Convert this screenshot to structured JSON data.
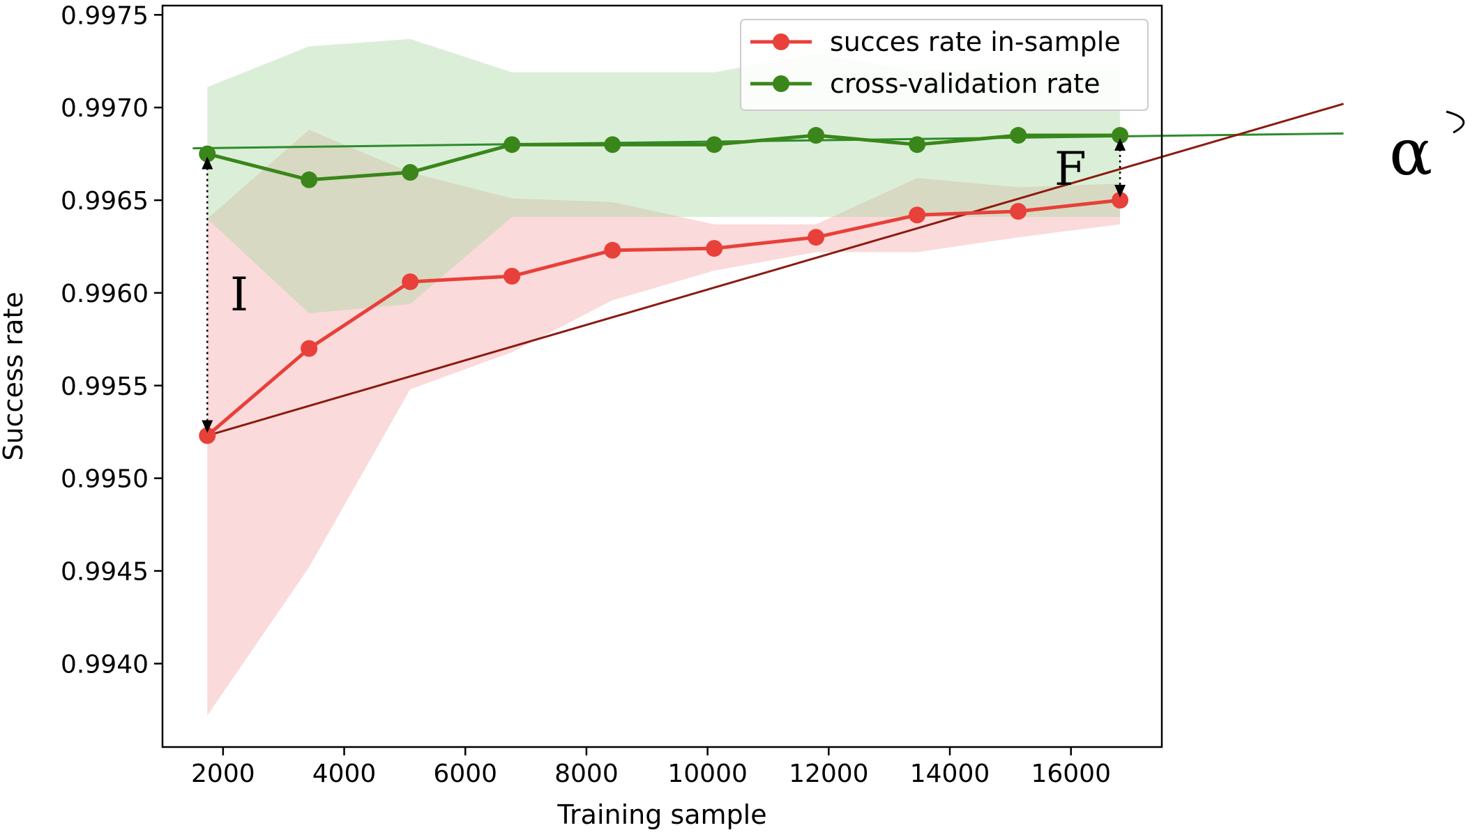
{
  "chart_data": {
    "type": "line",
    "title": "",
    "xlabel": "Training sample",
    "ylabel": "Success rate",
    "xlim": [
      1000,
      17500
    ],
    "ylim": [
      0.99355,
      0.99755
    ],
    "xticks": [
      2000,
      4000,
      6000,
      8000,
      10000,
      12000,
      14000,
      16000
    ],
    "yticks": [
      0.994,
      0.9945,
      0.995,
      0.9955,
      0.996,
      0.9965,
      0.997,
      0.9975
    ],
    "ytick_labels": [
      "0.9940",
      "0.9945",
      "0.9950",
      "0.9955",
      "0.9960",
      "0.9965",
      "0.9970",
      "0.9975"
    ],
    "grid": false,
    "legend_position": "top-right",
    "x": [
      1740,
      3420,
      5090,
      6770,
      8430,
      10110,
      11790,
      13460,
      15130,
      16810
    ],
    "series": [
      {
        "name": "succes rate in-sample",
        "color": "#e8403a",
        "values": [
          0.99523,
          0.9957,
          0.99606,
          0.99609,
          0.99623,
          0.99624,
          0.9963,
          0.99642,
          0.99644,
          0.9965
        ],
        "band_upper": [
          0.9964,
          0.99688,
          0.99665,
          0.99651,
          0.99649,
          0.99637,
          0.99637,
          0.99662,
          0.99657,
          0.99659
        ],
        "band_lower": [
          0.99372,
          0.99452,
          0.99548,
          0.99568,
          0.99596,
          0.99612,
          0.99622,
          0.99622,
          0.9963,
          0.99637
        ]
      },
      {
        "name": "cross-validation rate",
        "color": "#3a861a",
        "values": [
          0.99675,
          0.99661,
          0.99665,
          0.9968,
          0.9968,
          0.9968,
          0.99685,
          0.9968,
          0.99685,
          0.99685
        ],
        "band_upper": [
          0.99711,
          0.99733,
          0.99737,
          0.99719,
          0.99719,
          0.99719,
          0.99729,
          0.9972,
          0.99721,
          0.99721
        ],
        "band_lower": [
          0.9964,
          0.99589,
          0.99594,
          0.99641,
          0.99641,
          0.99641,
          0.99641,
          0.99641,
          0.99641,
          0.99641
        ]
      }
    ],
    "annotations": [
      {
        "label": "I",
        "x": 1740,
        "y_from": 0.99675,
        "y_to": 0.99523
      },
      {
        "label": "F",
        "x": 16810,
        "y_from": 0.99685,
        "y_to": 0.9965
      },
      {
        "label": "α"
      }
    ],
    "reference_lines": [
      {
        "color": "#2e8b2e",
        "from": [
          1500,
          0.99678
        ],
        "to": [
          20500,
          0.99686
        ]
      },
      {
        "color": "#8b1a10",
        "from": [
          1740,
          0.99523
        ],
        "to": [
          20500,
          0.99702
        ]
      }
    ]
  }
}
